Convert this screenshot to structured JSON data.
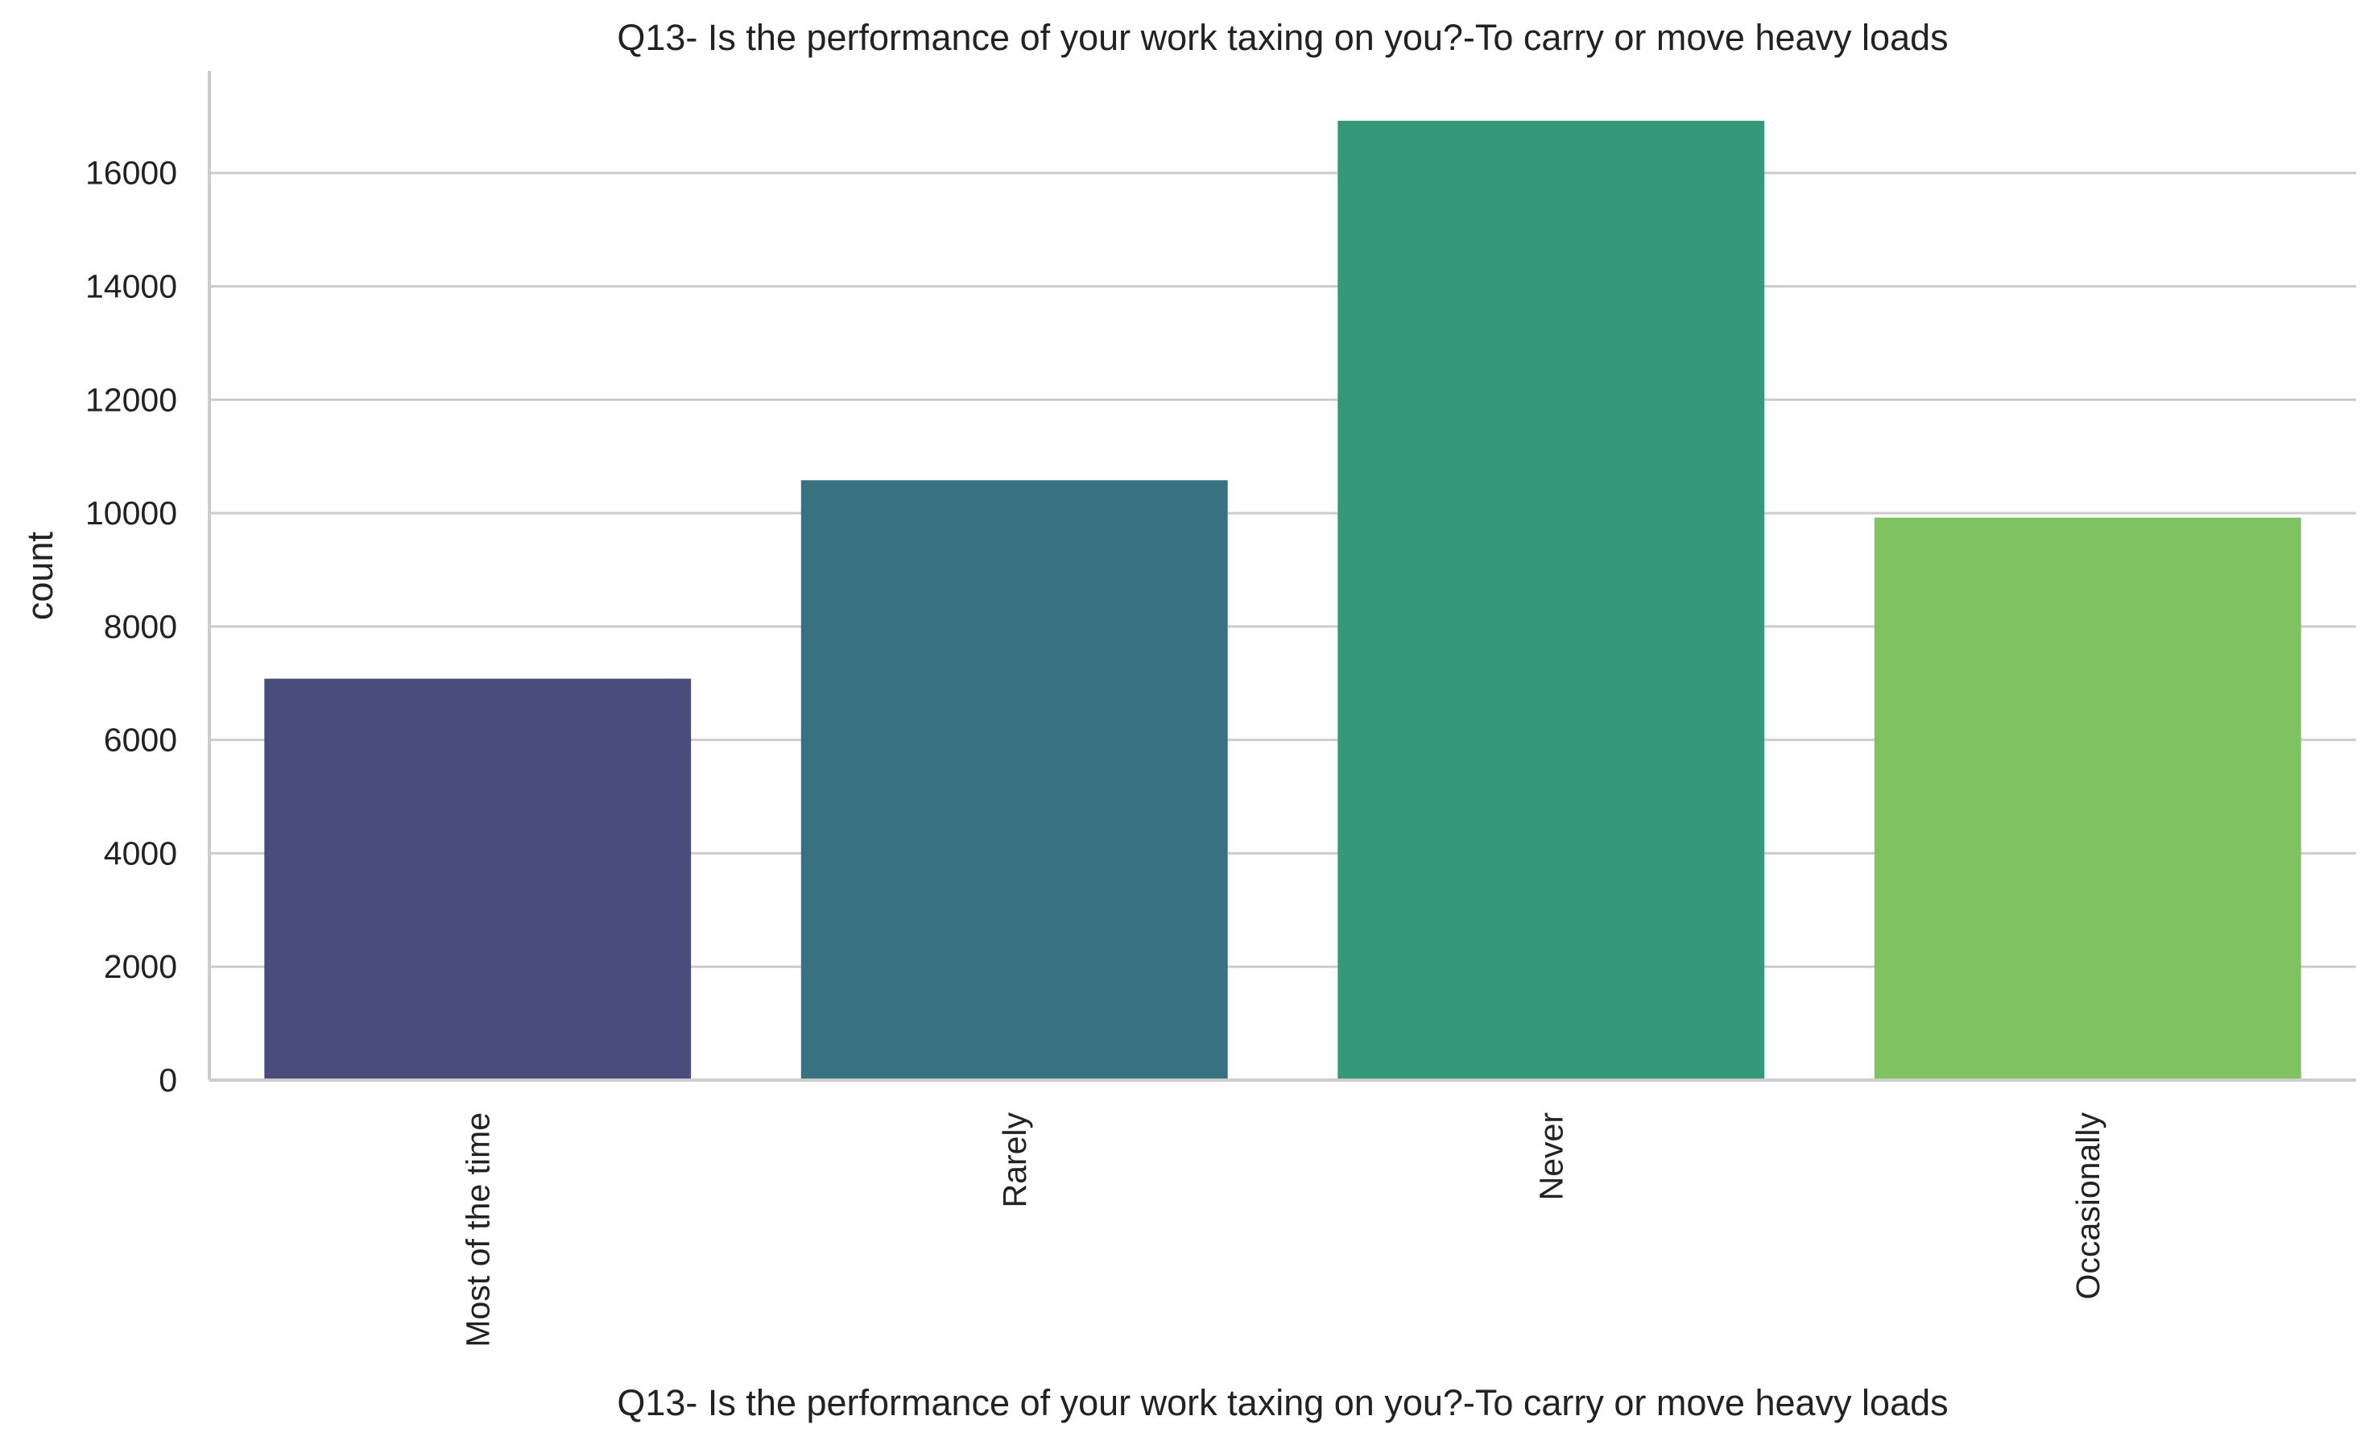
{
  "chart_data": {
    "type": "bar",
    "title": "Q13- Is the performance of your work taxing on you?-To carry or move heavy loads",
    "xlabel": "Q13- Is the performance of your work taxing on you?-To carry or move heavy loads",
    "ylabel": "count",
    "categories": [
      "Most of the time",
      "Rarely",
      "Never",
      "Occasionally"
    ],
    "values": [
      7080,
      10580,
      16920,
      9920
    ],
    "colors": [
      "#4a4c7d",
      "#38717f",
      "#35987b",
      "#7fc261"
    ],
    "ylim": [
      0,
      17800
    ],
    "yticks": [
      "0",
      "2000",
      "4000",
      "6000",
      "8000",
      "10000",
      "12000",
      "14000",
      "16000"
    ],
    "grid": "horizontal",
    "legend": "none"
  }
}
